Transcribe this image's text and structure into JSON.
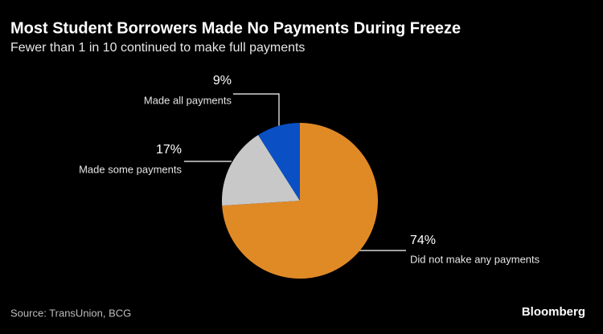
{
  "chart_data": {
    "type": "pie",
    "title": "Most Student Borrowers Made No Payments During Freeze",
    "subtitle": "Fewer than 1 in 10 continued to make full payments",
    "categories": [
      "Did not make any payments",
      "Made some payments",
      "Made all payments"
    ],
    "values": [
      74,
      17,
      9
    ],
    "value_labels": [
      "74%",
      "17%",
      "9%"
    ],
    "colors": [
      "#e08a26",
      "#c8c8c8",
      "#0a4fc4"
    ],
    "source": "Source: TransUnion, BCG",
    "logo": "Bloomberg"
  }
}
